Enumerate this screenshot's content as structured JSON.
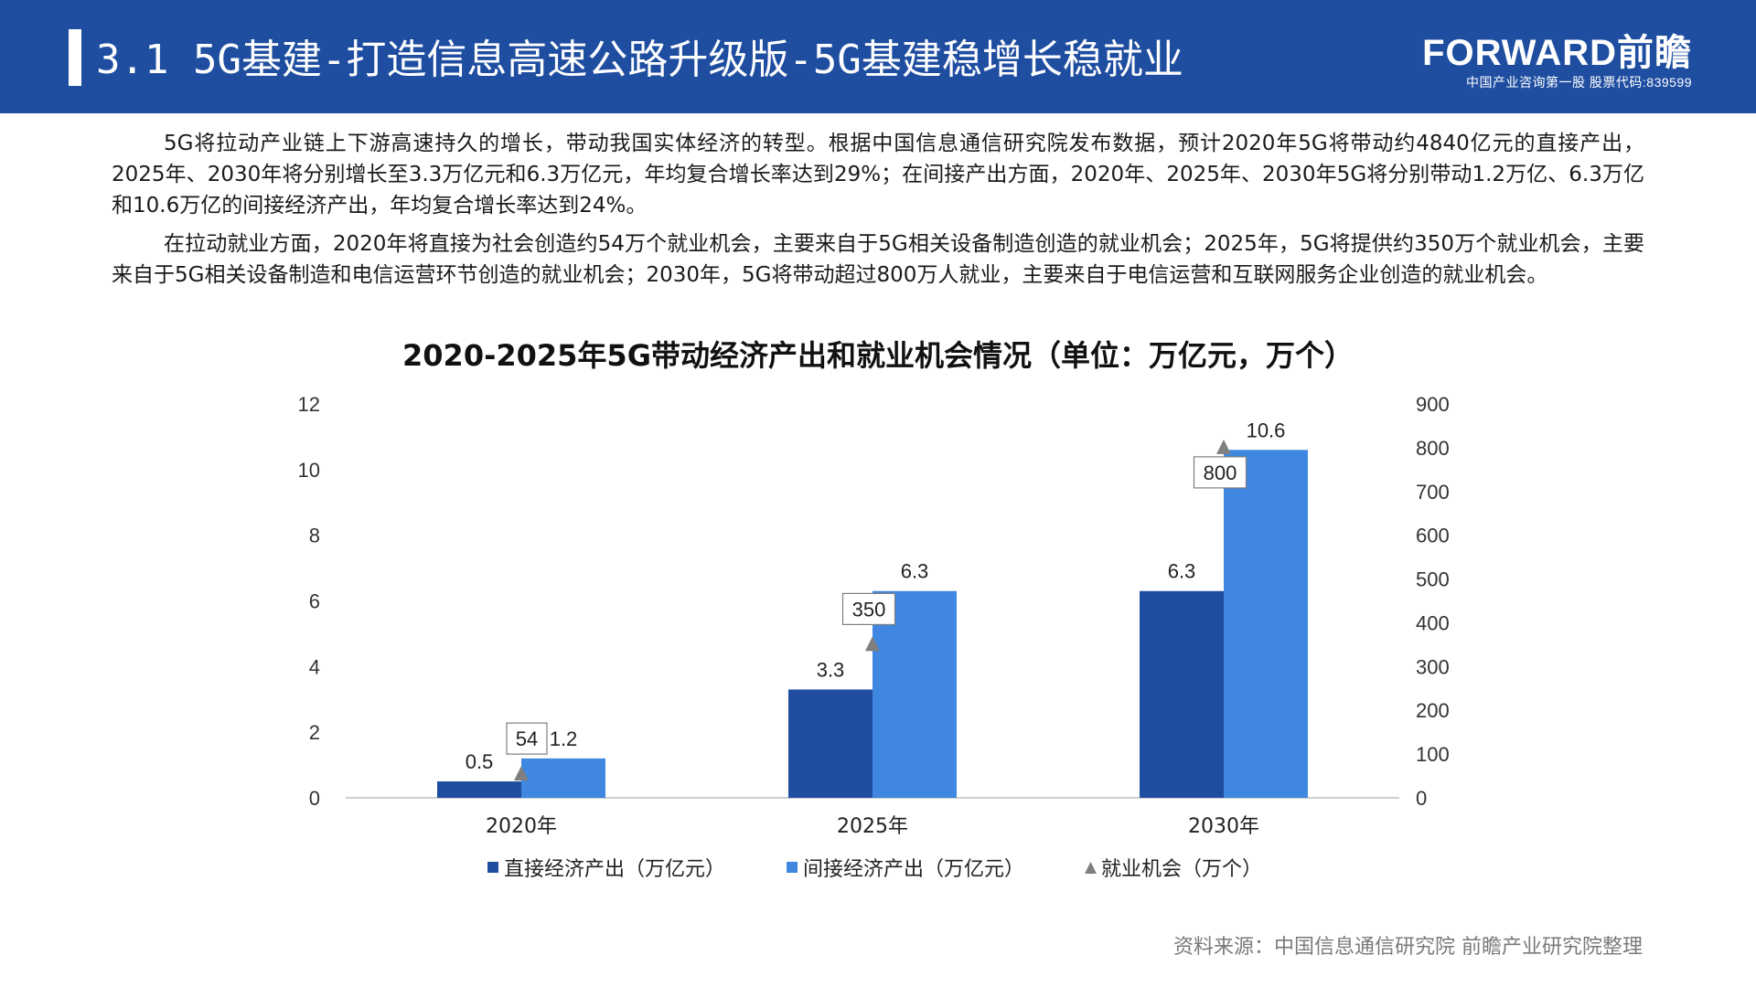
{
  "header": {
    "title": "3.1 5G基建-打造信息高速公路升级版-5G基建稳增长稳就业",
    "brand_logo": "FORWARD前瞻",
    "brand_sub": "中国产业咨询第一股  股票代码:839599"
  },
  "paragraphs": [
    "5G将拉动产业链上下游高速持久的增长，带动我国实体经济的转型。根据中国信息通信研究院发布数据，预计2020年5G将带动约4840亿元的直接产出，2025年、2030年将分别增长至3.3万亿元和6.3万亿元，年均复合增长率达到29%；在间接产出方面，2020年、2025年、2030年5G将分别带动1.2万亿、6.3万亿和10.6万亿的间接经济产出，年均复合增长率达到24%。",
    "在拉动就业方面，2020年将直接为社会创造约54万个就业机会，主要来自于5G相关设备制造创造的就业机会；2025年，5G将提供约350万个就业机会，主要来自于5G相关设备制造和电信运营环节创造的就业机会；2030年，5G将带动超过800万人就业，主要来自于电信运营和互联网服务企业创造的就业机会。"
  ],
  "chart_data": {
    "type": "bar",
    "title": "2020-2025年5G带动经济产出和就业机会情况（单位：万亿元，万个）",
    "categories": [
      "2020年",
      "2025年",
      "2030年"
    ],
    "series": [
      {
        "name": "直接经济产出（万亿元）",
        "type": "bar",
        "axis": "left",
        "values": [
          0.5,
          3.3,
          6.3
        ],
        "labels": [
          "0.5",
          "3.3",
          "6.3"
        ],
        "color": "#1f4ea1"
      },
      {
        "name": "间接经济产出（万亿元）",
        "type": "bar",
        "axis": "left",
        "values": [
          1.2,
          6.3,
          10.6
        ],
        "labels": [
          "1.2",
          "6.3",
          "10.6"
        ],
        "color": "#3f87e0"
      },
      {
        "name": "就业机会（万个）",
        "type": "marker",
        "axis": "right",
        "values": [
          54,
          350,
          800
        ],
        "labels": [
          "54",
          "350",
          "800"
        ],
        "color": "#7f7f7f"
      }
    ],
    "left_axis": {
      "min": 0,
      "max": 12,
      "ticks": [
        "0",
        "2",
        "4",
        "6",
        "8",
        "10",
        "12"
      ]
    },
    "right_axis": {
      "min": 0,
      "max": 900,
      "ticks": [
        "0",
        "100",
        "200",
        "300",
        "400",
        "500",
        "600",
        "700",
        "800",
        "900"
      ]
    },
    "legend_position": "bottom",
    "grid": false
  },
  "source": "资料来源：中国信息通信研究院 前瞻产业研究院整理"
}
